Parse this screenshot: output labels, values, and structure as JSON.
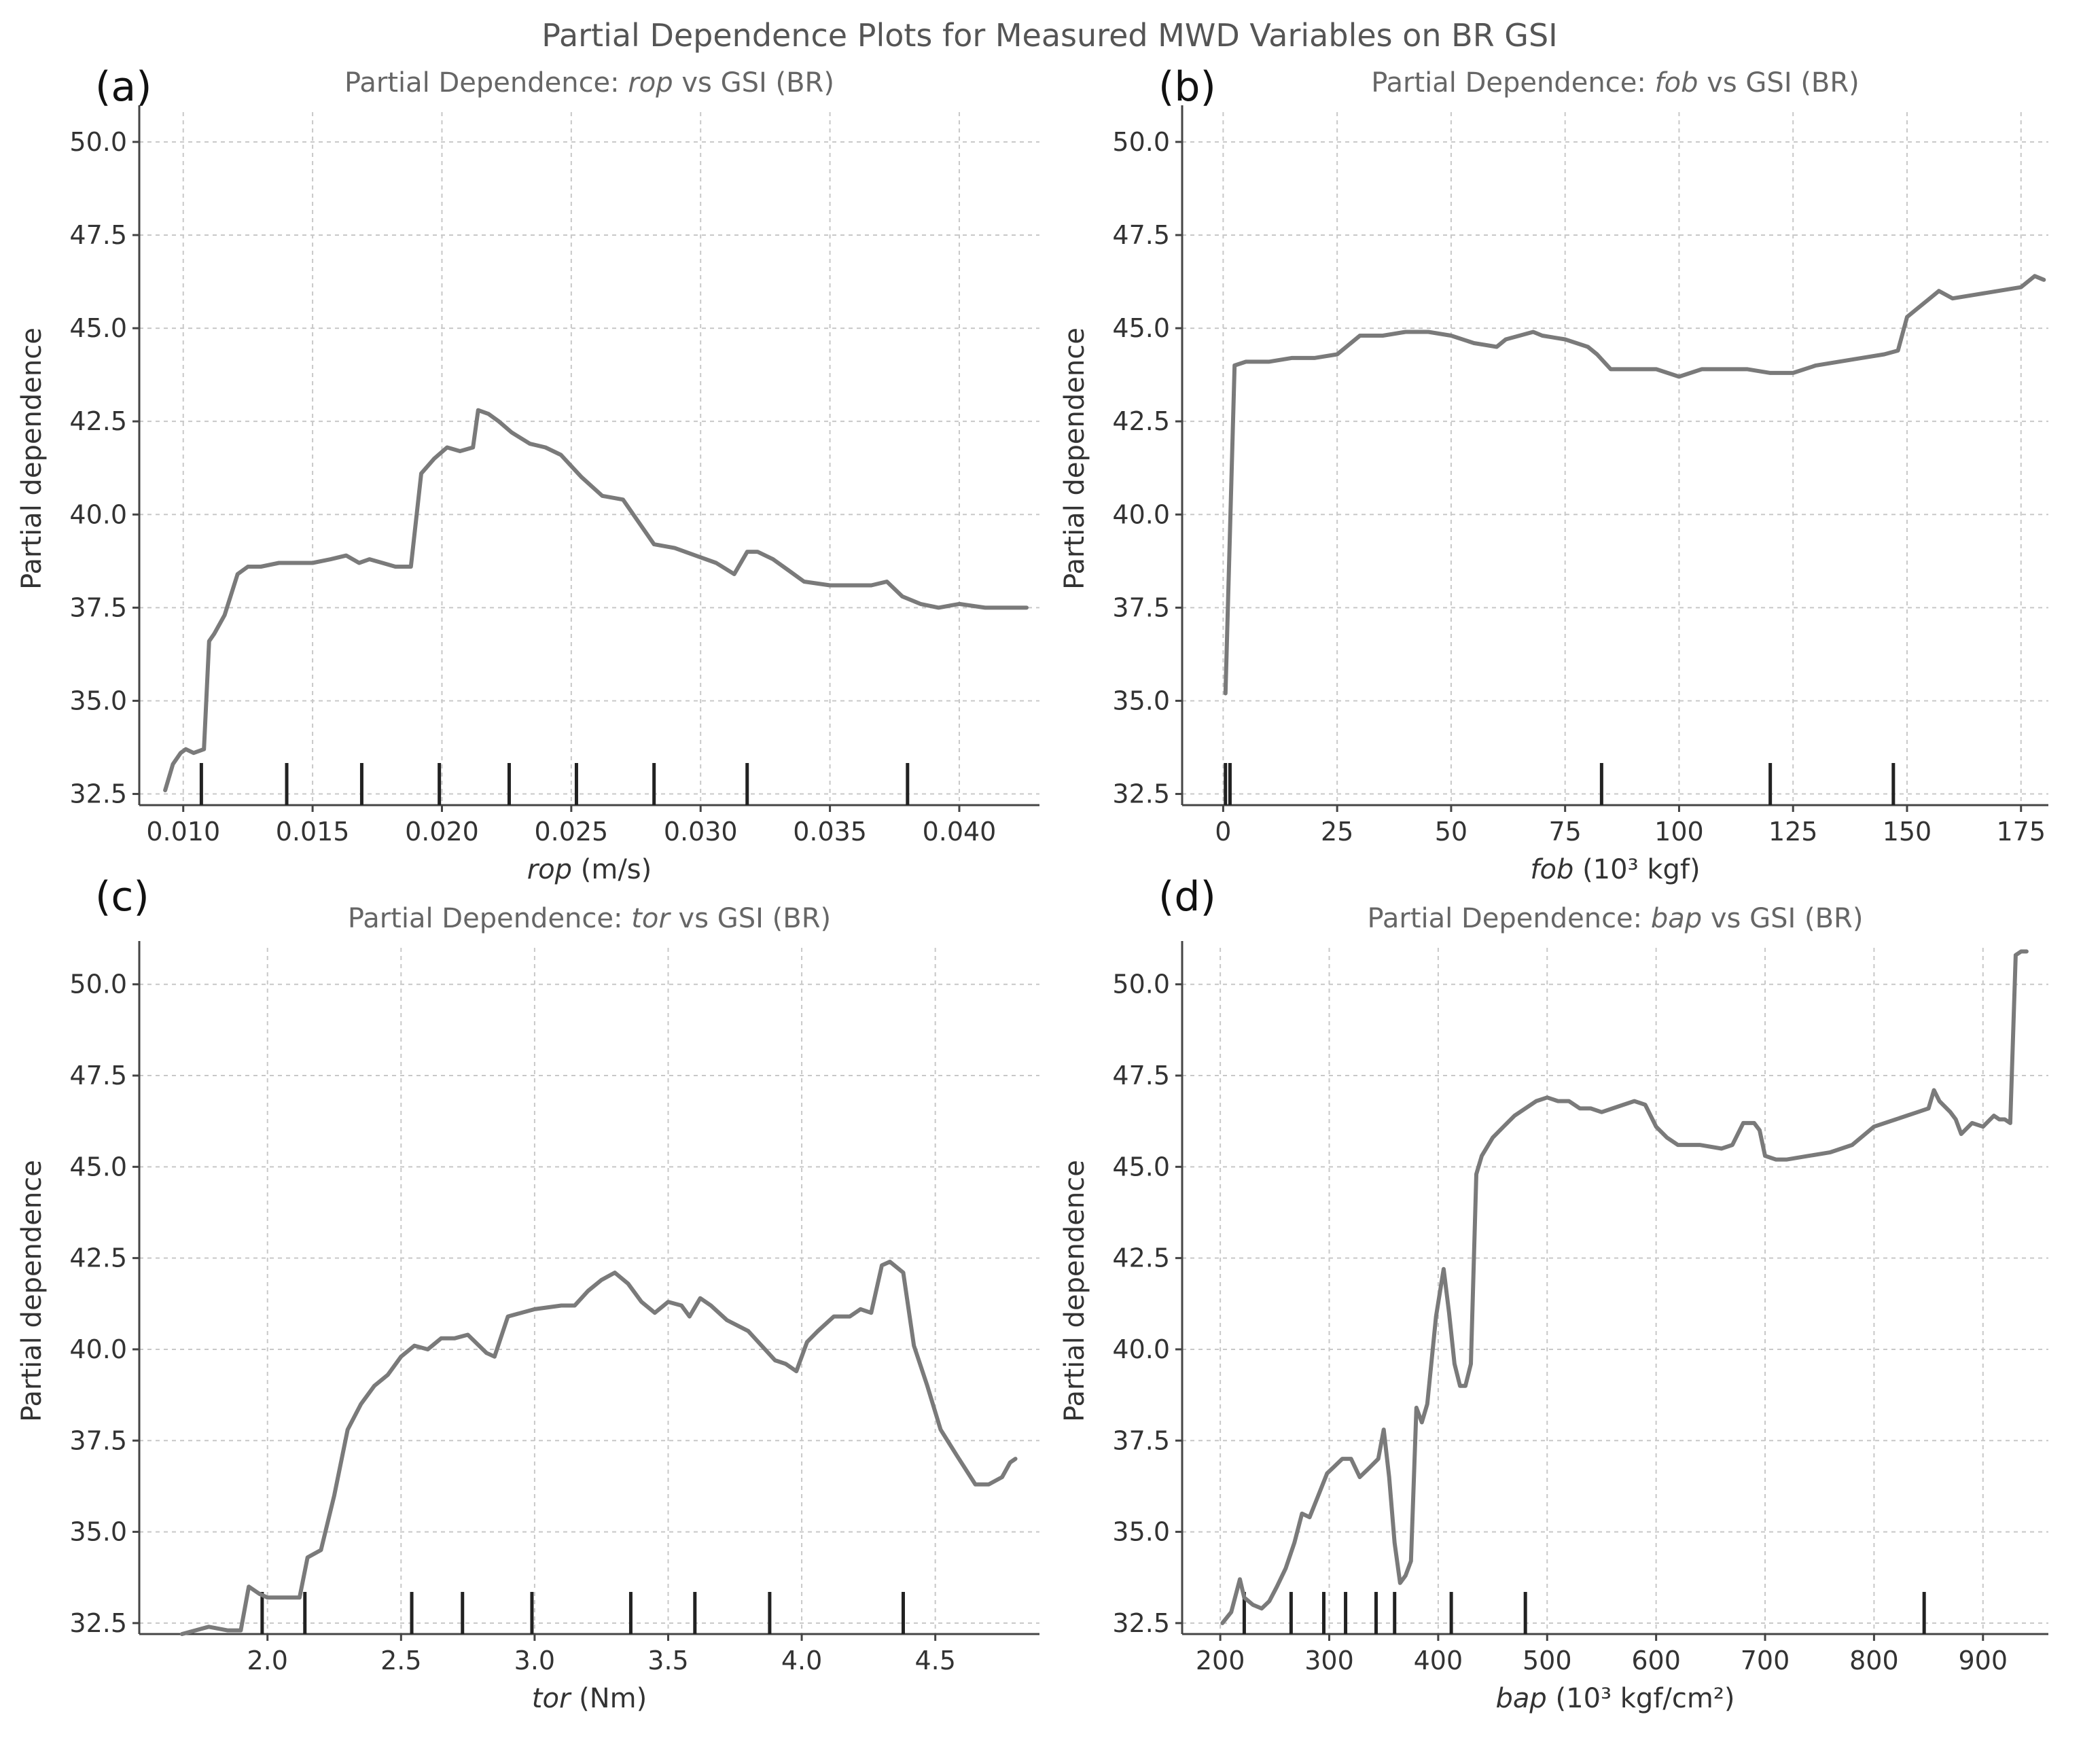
{
  "suptitle": "Partial Dependence Plots for Measured MWD Variables on BR GSI",
  "chart_data": [
    {
      "type": "line",
      "panel_label": "(a)",
      "title_prefix": "Partial Dependence: ",
      "title_var": "rop",
      "title_suffix": " vs GSI (BR)",
      "xlabel_var": "rop",
      "xlabel_unit": " (m/s)",
      "ylabel": "Partial dependence",
      "xlim": [
        0.0083,
        0.0431
      ],
      "ylim": [
        32.2,
        50.8
      ],
      "xticks": [
        0.01,
        0.015,
        0.02,
        0.025,
        0.03,
        0.035,
        0.04
      ],
      "xtick_labels": [
        "0.010",
        "0.015",
        "0.020",
        "0.025",
        "0.030",
        "0.035",
        "0.040"
      ],
      "yticks": [
        32.5,
        35.0,
        37.5,
        40.0,
        42.5,
        45.0,
        47.5,
        50.0
      ],
      "ytick_labels": [
        "32.5",
        "35.0",
        "37.5",
        "40.0",
        "42.5",
        "45.0",
        "47.5",
        "50.0"
      ],
      "grid": true,
      "rug": [
        0.0107,
        0.014,
        0.0169,
        0.0199,
        0.0226,
        0.0252,
        0.0282,
        0.0318,
        0.038
      ],
      "x": [
        0.0093,
        0.0096,
        0.0099,
        0.0101,
        0.0104,
        0.0108,
        0.011,
        0.0112,
        0.0116,
        0.0121,
        0.0125,
        0.013,
        0.0137,
        0.0143,
        0.015,
        0.0157,
        0.0163,
        0.0168,
        0.0172,
        0.0177,
        0.0182,
        0.0188,
        0.0192,
        0.0197,
        0.0202,
        0.0207,
        0.0212,
        0.0214,
        0.0218,
        0.0222,
        0.0227,
        0.0234,
        0.024,
        0.0246,
        0.0254,
        0.0262,
        0.027,
        0.0276,
        0.0282,
        0.029,
        0.0298,
        0.0306,
        0.0313,
        0.0318,
        0.0322,
        0.0328,
        0.0334,
        0.034,
        0.035,
        0.036,
        0.0366,
        0.0372,
        0.0378,
        0.0385,
        0.0392,
        0.04,
        0.041,
        0.042,
        0.0426
      ],
      "y": [
        32.6,
        33.3,
        33.6,
        33.7,
        33.6,
        33.7,
        36.6,
        36.8,
        37.3,
        38.4,
        38.6,
        38.6,
        38.7,
        38.7,
        38.7,
        38.8,
        38.9,
        38.7,
        38.8,
        38.7,
        38.6,
        38.6,
        41.1,
        41.5,
        41.8,
        41.7,
        41.8,
        42.8,
        42.7,
        42.5,
        42.2,
        41.9,
        41.8,
        41.6,
        41.0,
        40.5,
        40.4,
        39.8,
        39.2,
        39.1,
        38.9,
        38.7,
        38.4,
        39.0,
        39.0,
        38.8,
        38.5,
        38.2,
        38.1,
        38.1,
        38.1,
        38.2,
        37.8,
        37.6,
        37.5,
        37.6,
        37.5,
        37.5,
        37.5
      ]
    },
    {
      "type": "line",
      "panel_label": "(b)",
      "title_prefix": "Partial Dependence: ",
      "title_var": "fob",
      "title_suffix": " vs GSI (BR)",
      "xlabel_var": "fob",
      "xlabel_unit": " (10³ kgf)",
      "ylabel": "Partial dependence",
      "xlim": [
        -9,
        181
      ],
      "ylim": [
        32.2,
        50.8
      ],
      "xticks": [
        0,
        25,
        50,
        75,
        100,
        125,
        150,
        175
      ],
      "xtick_labels": [
        "0",
        "25",
        "50",
        "75",
        "100",
        "125",
        "150",
        "175"
      ],
      "yticks": [
        32.5,
        35.0,
        37.5,
        40.0,
        42.5,
        45.0,
        47.5,
        50.0
      ],
      "ytick_labels": [
        "32.5",
        "35.0",
        "37.5",
        "40.0",
        "42.5",
        "45.0",
        "47.5",
        "50.0"
      ],
      "grid": true,
      "rug": [
        0.5,
        1.5,
        83,
        120,
        147
      ],
      "x": [
        0.5,
        2.5,
        5,
        10,
        15,
        20,
        25,
        28,
        30,
        35,
        40,
        45,
        50,
        55,
        60,
        62,
        65,
        68,
        70,
        75,
        80,
        82,
        85,
        90,
        95,
        100,
        105,
        110,
        115,
        120,
        125,
        130,
        135,
        140,
        145,
        148,
        150,
        152,
        155,
        157,
        160,
        165,
        170,
        175,
        178,
        180
      ],
      "y": [
        35.2,
        44.0,
        44.1,
        44.1,
        44.2,
        44.2,
        44.3,
        44.6,
        44.8,
        44.8,
        44.9,
        44.9,
        44.8,
        44.6,
        44.5,
        44.7,
        44.8,
        44.9,
        44.8,
        44.7,
        44.5,
        44.3,
        43.9,
        43.9,
        43.9,
        43.7,
        43.9,
        43.9,
        43.9,
        43.8,
        43.8,
        44.0,
        44.1,
        44.2,
        44.3,
        44.4,
        45.3,
        45.5,
        45.8,
        46.0,
        45.8,
        45.9,
        46.0,
        46.1,
        46.4,
        46.3
      ]
    },
    {
      "type": "line",
      "panel_label": "(c)",
      "title_prefix": "Partial Dependence: ",
      "title_var": "tor",
      "title_suffix": " vs GSI (BR)",
      "xlabel_var": "tor",
      "xlabel_unit": " (Nm)",
      "ylabel": "Partial dependence",
      "xlim": [
        1.52,
        4.89
      ],
      "ylim": [
        32.2,
        51.0
      ],
      "xticks": [
        2.0,
        2.5,
        3.0,
        3.5,
        4.0,
        4.5
      ],
      "xtick_labels": [
        "2.0",
        "2.5",
        "3.0",
        "3.5",
        "4.0",
        "4.5"
      ],
      "yticks": [
        32.5,
        35.0,
        37.5,
        40.0,
        42.5,
        45.0,
        47.5,
        50.0
      ],
      "ytick_labels": [
        "32.5",
        "35.0",
        "37.5",
        "40.0",
        "42.5",
        "45.0",
        "47.5",
        "50.0"
      ],
      "grid": true,
      "rug": [
        1.98,
        2.14,
        2.54,
        2.73,
        2.99,
        3.36,
        3.6,
        3.88,
        4.38
      ],
      "x": [
        1.68,
        1.78,
        1.85,
        1.9,
        1.93,
        1.97,
        2.0,
        2.05,
        2.12,
        2.15,
        2.2,
        2.25,
        2.3,
        2.35,
        2.4,
        2.45,
        2.5,
        2.55,
        2.6,
        2.65,
        2.7,
        2.75,
        2.82,
        2.85,
        2.9,
        3.0,
        3.1,
        3.15,
        3.2,
        3.25,
        3.3,
        3.35,
        3.4,
        3.45,
        3.5,
        3.55,
        3.58,
        3.62,
        3.66,
        3.72,
        3.8,
        3.85,
        3.9,
        3.94,
        3.98,
        4.02,
        4.06,
        4.12,
        4.18,
        4.22,
        4.26,
        4.3,
        4.33,
        4.38,
        4.42,
        4.47,
        4.52,
        4.58,
        4.65,
        4.7,
        4.75,
        4.78,
        4.8
      ],
      "y": [
        32.2,
        32.4,
        32.3,
        32.3,
        33.5,
        33.3,
        33.2,
        33.2,
        33.2,
        34.3,
        34.5,
        36.0,
        37.8,
        38.5,
        39.0,
        39.3,
        39.8,
        40.1,
        40.0,
        40.3,
        40.3,
        40.4,
        39.9,
        39.8,
        40.9,
        41.1,
        41.2,
        41.2,
        41.6,
        41.9,
        42.1,
        41.8,
        41.3,
        41.0,
        41.3,
        41.2,
        40.9,
        41.4,
        41.2,
        40.8,
        40.5,
        40.1,
        39.7,
        39.6,
        39.4,
        40.2,
        40.5,
        40.9,
        40.9,
        41.1,
        41.0,
        42.3,
        42.4,
        42.1,
        40.1,
        39.0,
        37.8,
        37.1,
        36.3,
        36.3,
        36.5,
        36.9,
        37.0
      ]
    },
    {
      "type": "line",
      "panel_label": "(d)",
      "title_prefix": "Partial Dependence: ",
      "title_var": "bap",
      "title_suffix": " vs GSI (BR)",
      "xlabel_var": "bap",
      "xlabel_unit": " (10³ kgf/cm²)",
      "ylabel": "Partial dependence",
      "xlim": [
        165,
        960
      ],
      "ylim": [
        32.2,
        51.0
      ],
      "xticks": [
        200,
        300,
        400,
        500,
        600,
        700,
        800,
        900
      ],
      "xtick_labels": [
        "200",
        "300",
        "400",
        "500",
        "600",
        "700",
        "800",
        "900"
      ],
      "yticks": [
        32.5,
        35.0,
        37.5,
        40.0,
        42.5,
        45.0,
        47.5,
        50.0
      ],
      "ytick_labels": [
        "32.5",
        "35.0",
        "37.5",
        "40.0",
        "42.5",
        "45.0",
        "47.5",
        "50.0"
      ],
      "grid": true,
      "rug": [
        222,
        265,
        295,
        315,
        343,
        360,
        412,
        480,
        846
      ],
      "x": [
        202,
        210,
        218,
        222,
        230,
        238,
        245,
        252,
        260,
        268,
        275,
        282,
        290,
        298,
        305,
        312,
        320,
        328,
        335,
        345,
        350,
        355,
        360,
        365,
        370,
        375,
        380,
        385,
        390,
        398,
        405,
        410,
        415,
        420,
        425,
        430,
        435,
        440,
        450,
        460,
        470,
        480,
        490,
        500,
        510,
        520,
        530,
        540,
        550,
        560,
        570,
        580,
        590,
        600,
        610,
        620,
        640,
        660,
        670,
        680,
        690,
        695,
        700,
        710,
        720,
        740,
        760,
        780,
        800,
        820,
        830,
        840,
        850,
        855,
        860,
        870,
        875,
        880,
        890,
        900,
        910,
        915,
        920,
        925,
        930,
        935,
        940
      ],
      "y": [
        32.5,
        32.8,
        33.7,
        33.2,
        33.0,
        32.9,
        33.1,
        33.5,
        34.0,
        34.7,
        35.5,
        35.4,
        36.0,
        36.6,
        36.8,
        37.0,
        37.0,
        36.5,
        36.7,
        37.0,
        37.8,
        36.5,
        34.7,
        33.6,
        33.8,
        34.2,
        38.4,
        38.0,
        38.5,
        40.9,
        42.2,
        41.0,
        39.6,
        39.0,
        39.0,
        39.6,
        44.8,
        45.3,
        45.8,
        46.1,
        46.4,
        46.6,
        46.8,
        46.9,
        46.8,
        46.8,
        46.6,
        46.6,
        46.5,
        46.6,
        46.7,
        46.8,
        46.7,
        46.1,
        45.8,
        45.6,
        45.6,
        45.5,
        45.6,
        46.2,
        46.2,
        46.0,
        45.3,
        45.2,
        45.2,
        45.3,
        45.4,
        45.6,
        46.1,
        46.3,
        46.4,
        46.5,
        46.6,
        47.1,
        46.8,
        46.5,
        46.3,
        45.9,
        46.2,
        46.1,
        46.4,
        46.3,
        46.3,
        46.2,
        50.8,
        50.9,
        50.9
      ]
    }
  ]
}
